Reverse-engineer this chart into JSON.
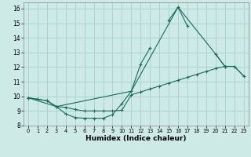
{
  "xlabel": "Humidex (Indice chaleur)",
  "bg_color": "#ceeae7",
  "grid_color": "#aad4d0",
  "line_color": "#1a6b5a",
  "xlim": [
    -0.5,
    23.5
  ],
  "ylim": [
    8,
    16.4
  ],
  "xticks": [
    0,
    1,
    2,
    3,
    4,
    5,
    6,
    7,
    8,
    9,
    10,
    11,
    12,
    13,
    14,
    15,
    16,
    17,
    18,
    19,
    20,
    21,
    22,
    23
  ],
  "yticks": [
    8,
    9,
    10,
    11,
    12,
    13,
    14,
    15,
    16
  ],
  "series1_x": [
    0,
    1,
    2,
    3,
    4,
    5,
    6,
    7,
    8,
    9,
    10,
    11,
    12,
    13,
    15,
    16,
    17,
    20,
    21,
    22,
    23
  ],
  "series1_y": [
    9.9,
    9.8,
    9.7,
    9.3,
    8.8,
    8.55,
    8.5,
    8.5,
    8.5,
    8.75,
    9.5,
    10.35,
    12.2,
    13.3,
    15.2,
    16.1,
    14.8,
    12.9,
    12.05,
    12.05,
    11.4
  ],
  "series1_gaps": [
    [
      13,
      15
    ],
    [
      17,
      20
    ]
  ],
  "series2_x": [
    0,
    1,
    2,
    3,
    4,
    5,
    6,
    7,
    8,
    9,
    10,
    11,
    12,
    13,
    14,
    15,
    16,
    17,
    18,
    19,
    20,
    21
  ],
  "series2_y": [
    9.9,
    9.8,
    9.7,
    9.3,
    9.25,
    9.1,
    9.0,
    9.0,
    9.0,
    9.0,
    9.05,
    10.1,
    10.3,
    10.5,
    10.7,
    10.9,
    11.1,
    11.3,
    11.5,
    11.7,
    11.9,
    12.05
  ],
  "series3_x": [
    0,
    3,
    11,
    16,
    20,
    21,
    22,
    23
  ],
  "series3_y": [
    9.9,
    9.3,
    10.35,
    16.1,
    12.9,
    12.05,
    12.05,
    11.4
  ]
}
